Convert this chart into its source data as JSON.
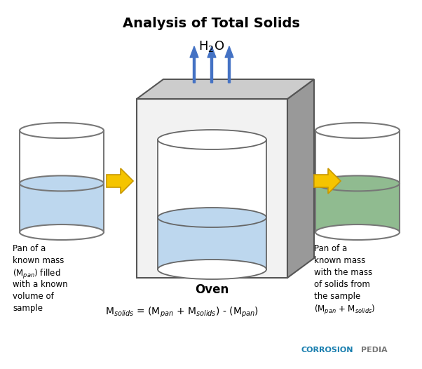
{
  "title": "Analysis of Total Solids",
  "title_fontsize": 14,
  "background_color": "#ffffff",
  "oven_label": "Oven",
  "arrow_color": "#F5C400",
  "arrow_edge_color": "#C89800",
  "blue_arrow_color": "#4472C4",
  "water_color_left": "#BDD7EE",
  "water_color_right": "#90BB90",
  "cylinder_edge_color": "#777777",
  "oven_face_color": "#F2F2F2",
  "oven_side_color": "#999999",
  "oven_top_color": "#CCCCCC",
  "left_label_lines": [
    "Pan of a",
    "known mass",
    "(M$_{pan}$) filled",
    "with a known",
    "volume of",
    "sample"
  ],
  "right_label_lines": [
    "Pan of a",
    "known mass",
    "with the mass",
    "of solids from",
    "the sample",
    "(M$_{pan}$ + M$_{solids}$)"
  ],
  "corrosion_color": "#1A7FAF",
  "pedia_color": "#777777"
}
